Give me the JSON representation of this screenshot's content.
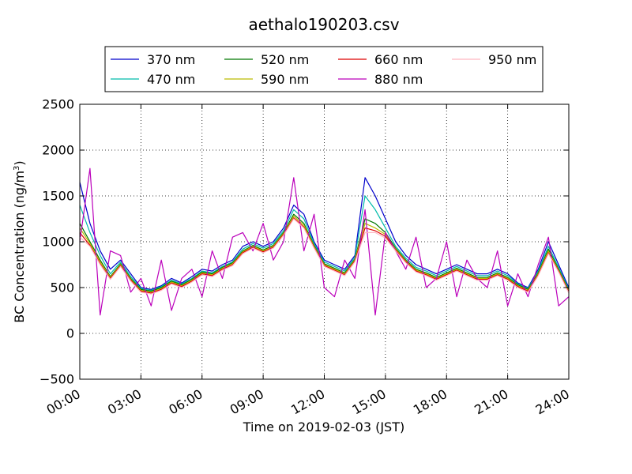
{
  "chart_data": {
    "type": "line",
    "title": "aethalo190203.csv",
    "xlabel": "Time on 2019-02-03 (JST)",
    "ylabel": "BC Concentration (ng/m³)",
    "ylabel_main": "BC Concentration (ng/m",
    "ylabel_sup": "3",
    "ylabel_close": ")",
    "xlim": [
      0,
      24
    ],
    "ylim": [
      -500,
      2500
    ],
    "xtick_values": [
      0,
      3,
      6,
      9,
      12,
      15,
      18,
      21,
      24
    ],
    "xtick_labels": [
      "00:00",
      "03:00",
      "06:00",
      "09:00",
      "12:00",
      "15:00",
      "18:00",
      "21:00",
      "24:00"
    ],
    "ytick_values": [
      -500,
      0,
      500,
      1000,
      1500,
      2000,
      2500
    ],
    "ytick_labels": [
      "−500",
      "0",
      "500",
      "1000",
      "1500",
      "2000",
      "2500"
    ],
    "grid": true,
    "legend_position": "top-center",
    "x": [
      0,
      0.5,
      1,
      1.5,
      2,
      2.5,
      3,
      3.5,
      4,
      4.5,
      5,
      5.5,
      6,
      6.5,
      7,
      7.5,
      8,
      8.5,
      9,
      9.5,
      10,
      10.5,
      11,
      11.5,
      12,
      12.5,
      13,
      13.5,
      14,
      14.5,
      15,
      15.5,
      16,
      16.5,
      17,
      17.5,
      18,
      18.5,
      19,
      19.5,
      20,
      20.5,
      21,
      21.5,
      22,
      22.5,
      23,
      23.5,
      24
    ],
    "series": [
      {
        "name": "370 nm",
        "color": "#0000cc",
        "values": [
          1650,
          1200,
          900,
          700,
          800,
          650,
          500,
          480,
          520,
          600,
          550,
          620,
          700,
          680,
          750,
          800,
          950,
          1000,
          950,
          1000,
          1150,
          1400,
          1300,
          1000,
          800,
          750,
          700,
          850,
          1700,
          1500,
          1250,
          1000,
          850,
          750,
          700,
          650,
          700,
          750,
          700,
          650,
          650,
          700,
          650,
          550,
          500,
          700,
          1000,
          750,
          500
        ]
      },
      {
        "name": "470 nm",
        "color": "#00bbaa",
        "values": [
          1400,
          1100,
          850,
          650,
          780,
          620,
          490,
          470,
          510,
          580,
          540,
          600,
          680,
          660,
          730,
          780,
          920,
          980,
          930,
          980,
          1120,
          1350,
          1250,
          980,
          780,
          730,
          680,
          830,
          1500,
          1350,
          1150,
          950,
          820,
          720,
          680,
          630,
          680,
          730,
          680,
          630,
          630,
          680,
          630,
          540,
          490,
          680,
          950,
          720,
          480
        ]
      },
      {
        "name": "520 nm",
        "color": "#007700",
        "values": [
          1200,
          1000,
          800,
          620,
          760,
          600,
          480,
          460,
          500,
          570,
          530,
          590,
          670,
          650,
          720,
          770,
          900,
          960,
          910,
          960,
          1100,
          1300,
          1200,
          960,
          760,
          710,
          660,
          810,
          1250,
          1200,
          1100,
          930,
          800,
          700,
          660,
          610,
          660,
          710,
          660,
          610,
          610,
          660,
          610,
          530,
          480,
          660,
          920,
          700,
          470
        ]
      },
      {
        "name": "590 nm",
        "color": "#bbbb00",
        "values": [
          1150,
          980,
          780,
          610,
          750,
          590,
          470,
          450,
          490,
          560,
          520,
          580,
          660,
          640,
          710,
          760,
          890,
          950,
          900,
          950,
          1090,
          1280,
          1180,
          950,
          750,
          700,
          650,
          800,
          1200,
          1150,
          1080,
          920,
          790,
          690,
          650,
          600,
          650,
          700,
          650,
          600,
          600,
          650,
          600,
          520,
          470,
          650,
          900,
          690,
          460
        ]
      },
      {
        "name": "660 nm",
        "color": "#dd0000",
        "values": [
          1100,
          960,
          760,
          600,
          740,
          580,
          460,
          440,
          480,
          550,
          510,
          570,
          650,
          630,
          700,
          750,
          880,
          940,
          890,
          940,
          1080,
          1260,
          1160,
          940,
          740,
          690,
          640,
          790,
          1150,
          1120,
          1060,
          910,
          780,
          680,
          640,
          590,
          640,
          690,
          640,
          590,
          590,
          640,
          590,
          510,
          460,
          640,
          880,
          680,
          450
        ]
      },
      {
        "name": "880 nm",
        "color": "#bb00bb",
        "values": [
          1000,
          1800,
          200,
          900,
          850,
          450,
          600,
          300,
          800,
          250,
          600,
          700,
          400,
          900,
          600,
          1050,
          1100,
          900,
          1200,
          800,
          1000,
          1700,
          900,
          1300,
          500,
          400,
          800,
          600,
          1350,
          200,
          1100,
          900,
          700,
          1050,
          500,
          600,
          1000,
          400,
          800,
          600,
          500,
          900,
          300,
          650,
          400,
          750,
          1050,
          300,
          400
        ]
      },
      {
        "name": "950 nm",
        "color": "#ffb6c1",
        "values": [
          1050,
          950,
          750,
          590,
          730,
          570,
          450,
          430,
          470,
          540,
          500,
          560,
          640,
          620,
          690,
          740,
          870,
          930,
          880,
          930,
          1070,
          1250,
          1150,
          930,
          730,
          680,
          630,
          780,
          1100,
          1100,
          1040,
          900,
          770,
          670,
          630,
          580,
          630,
          680,
          630,
          580,
          580,
          630,
          580,
          500,
          450,
          630,
          870,
          670,
          440
        ]
      }
    ]
  }
}
